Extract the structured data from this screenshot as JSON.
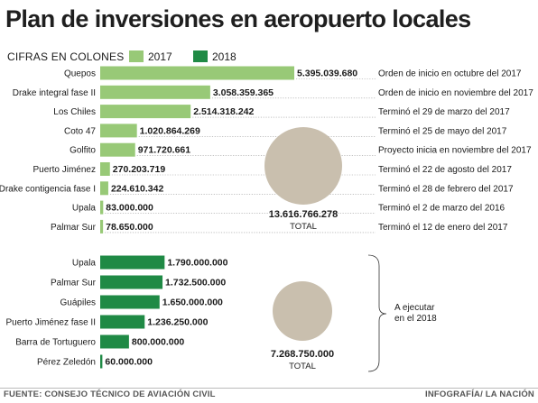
{
  "title": "Plan de inversiones en aeropuerto locales",
  "legend": {
    "unit_label": "CIFRAS EN COLONES",
    "y2017": "2017",
    "y2018": "2018"
  },
  "colors": {
    "y2017": "#98c977",
    "y2018": "#1f8a45",
    "circle": "#c9bfae"
  },
  "footer": {
    "source": "FUENTE: CONSEJO TÉCNICO DE AVIACIÓN CIVIL",
    "credit": "INFOGRAFÍA/ LA NACIÓN"
  },
  "chart_data": [
    {
      "type": "bar",
      "orientation": "horizontal",
      "series": [
        {
          "name": "2017"
        }
      ],
      "categories": [
        "Quepos",
        "Drake integral fase II",
        "Los Chiles",
        "Coto 47",
        "Golfito",
        "Puerto Jiménez",
        "Drake contigencia fase I",
        "Upala",
        "Palmar Sur"
      ],
      "value_labels": [
        "5.395.039.680",
        "3.058.359.365",
        "2.514.318.242",
        "1.020.864.269",
        "971.720.661",
        "270.203.719",
        "224.610.342",
        "83.000.000",
        "78.650.000"
      ],
      "values": [
        5395039680,
        3058359365,
        2514318242,
        1020864269,
        971720661,
        270203719,
        224610342,
        83000000,
        78650000
      ],
      "notes": [
        "Orden de inicio en octubre del 2017",
        "Orden de inicio en noviembre del 2017",
        "Terminó el 29 de marzo del 2017",
        "Terminó el 25 de mayo del 2017",
        "Proyecto inicia en noviembre del 2017",
        "Terminó el 22 de agosto del 2017",
        "Terminó el 28 de febrero del 2017",
        "Terminó el 2 de marzo del 2016",
        "Terminó el 12 de enero del 2017"
      ],
      "total": {
        "value_label": "13.616.766.278",
        "label": "TOTAL"
      }
    },
    {
      "type": "bar",
      "orientation": "horizontal",
      "series": [
        {
          "name": "2018"
        }
      ],
      "categories": [
        "Upala",
        "Palmar Sur",
        "Guápiles",
        "Puerto Jiménez fase II",
        "Barra de Tortuguero",
        "Pérez Zeledón"
      ],
      "value_labels": [
        "1.790.000.000",
        "1.732.500.000",
        "1.650.000.000",
        "1.236.250.000",
        "800.000.000",
        "60.000.000"
      ],
      "values": [
        1790000000,
        1732500000,
        1650000000,
        1236250000,
        800000000,
        60000000
      ],
      "group_note": "A ejecutar en el 2018",
      "total": {
        "value_label": "7.268.750.000",
        "label": "TOTAL"
      }
    }
  ]
}
